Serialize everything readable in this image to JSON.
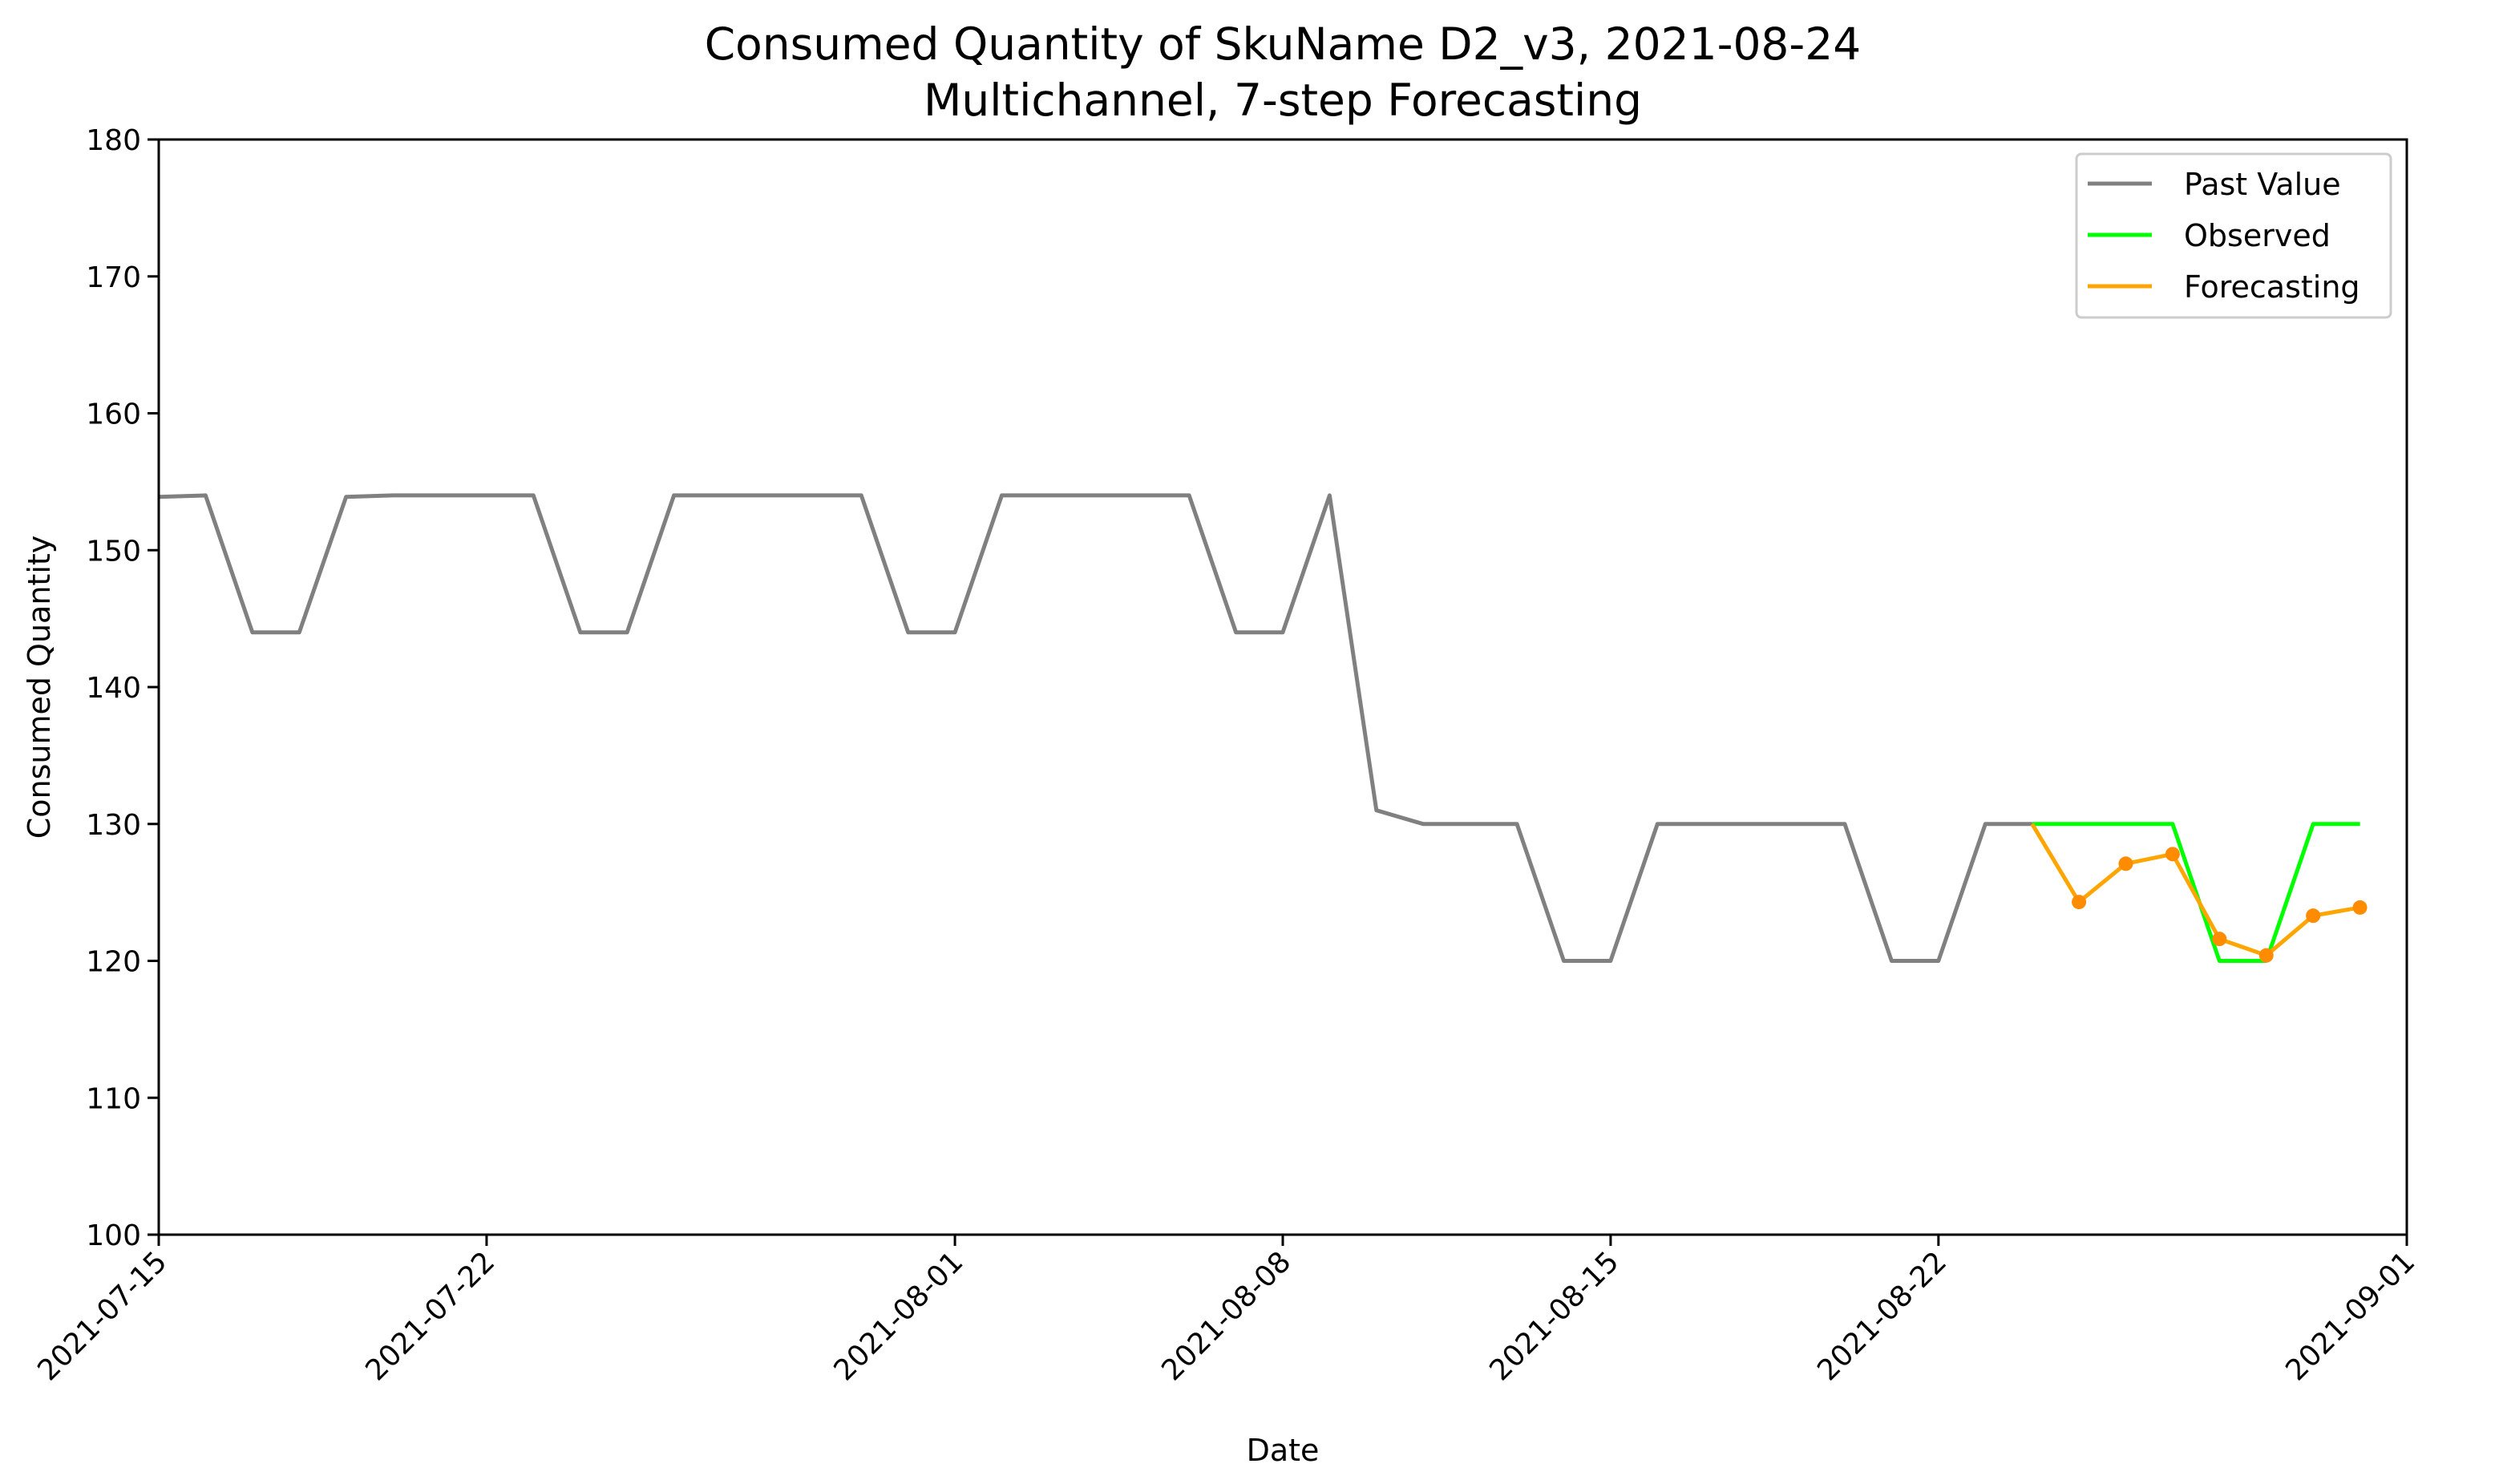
{
  "chart_data": {
    "type": "line",
    "title": "Consumed Quantity of SkuName D2_v3, 2021-08-24",
    "subtitle": "Multichannel, 7-step Forecasting",
    "xlabel": "Date",
    "ylabel": "Consumed Quantity",
    "xlim": [
      "2021-07-15",
      "2021-09-01"
    ],
    "ylim": [
      100,
      180
    ],
    "x_ticks": [
      "2021-07-15",
      "2021-07-22",
      "2021-08-01",
      "2021-08-08",
      "2021-08-15",
      "2021-08-22",
      "2021-09-01"
    ],
    "y_ticks": [
      100,
      110,
      120,
      130,
      140,
      150,
      160,
      170,
      180
    ],
    "grid": false,
    "legend_position": "top-right",
    "series": [
      {
        "name": "Past Value",
        "color": "#808080",
        "x": [
          "2021-07-15",
          "2021-07-16",
          "2021-07-17",
          "2021-07-18",
          "2021-07-19",
          "2021-07-20",
          "2021-07-21",
          "2021-07-22",
          "2021-07-23",
          "2021-07-24",
          "2021-07-25",
          "2021-07-26",
          "2021-07-27",
          "2021-07-28",
          "2021-07-29",
          "2021-07-30",
          "2021-07-31",
          "2021-08-01",
          "2021-08-02",
          "2021-08-03",
          "2021-08-04",
          "2021-08-05",
          "2021-08-06",
          "2021-08-07",
          "2021-08-08",
          "2021-08-09",
          "2021-08-10",
          "2021-08-11",
          "2021-08-12",
          "2021-08-13",
          "2021-08-14",
          "2021-08-15",
          "2021-08-16",
          "2021-08-17",
          "2021-08-18",
          "2021-08-19",
          "2021-08-20",
          "2021-08-21",
          "2021-08-22",
          "2021-08-23",
          "2021-08-24"
        ],
        "values": [
          153.9,
          154.0,
          144.0,
          144.0,
          153.9,
          154.0,
          154.0,
          154.0,
          154.0,
          144.0,
          144.0,
          154.0,
          154.0,
          154.0,
          154.0,
          154.0,
          144.0,
          144.0,
          154.0,
          154.0,
          154.0,
          154.0,
          154.0,
          144.0,
          144.0,
          154.0,
          131.0,
          130.0,
          130.0,
          130.0,
          120.0,
          120.0,
          130.0,
          130.0,
          130.0,
          130.0,
          130.0,
          120.0,
          120.0,
          130.0,
          130.0
        ]
      },
      {
        "name": "Observed",
        "color": "#00ff00",
        "x": [
          "2021-08-24",
          "2021-08-25",
          "2021-08-26",
          "2021-08-27",
          "2021-08-28",
          "2021-08-29",
          "2021-08-30",
          "2021-08-31"
        ],
        "values": [
          130,
          130,
          130,
          130,
          120,
          120,
          130,
          130
        ]
      },
      {
        "name": "Forecasting",
        "color": "#ffa500",
        "marker_color": "#ff8c00",
        "x": [
          "2021-08-24",
          "2021-08-25",
          "2021-08-26",
          "2021-08-27",
          "2021-08-28",
          "2021-08-29",
          "2021-08-30",
          "2021-08-31"
        ],
        "values": [
          130.0,
          124.3,
          127.1,
          127.8,
          121.6,
          120.4,
          123.3,
          123.9
        ],
        "markers": [
          false,
          true,
          true,
          true,
          true,
          true,
          true,
          true
        ]
      }
    ]
  }
}
